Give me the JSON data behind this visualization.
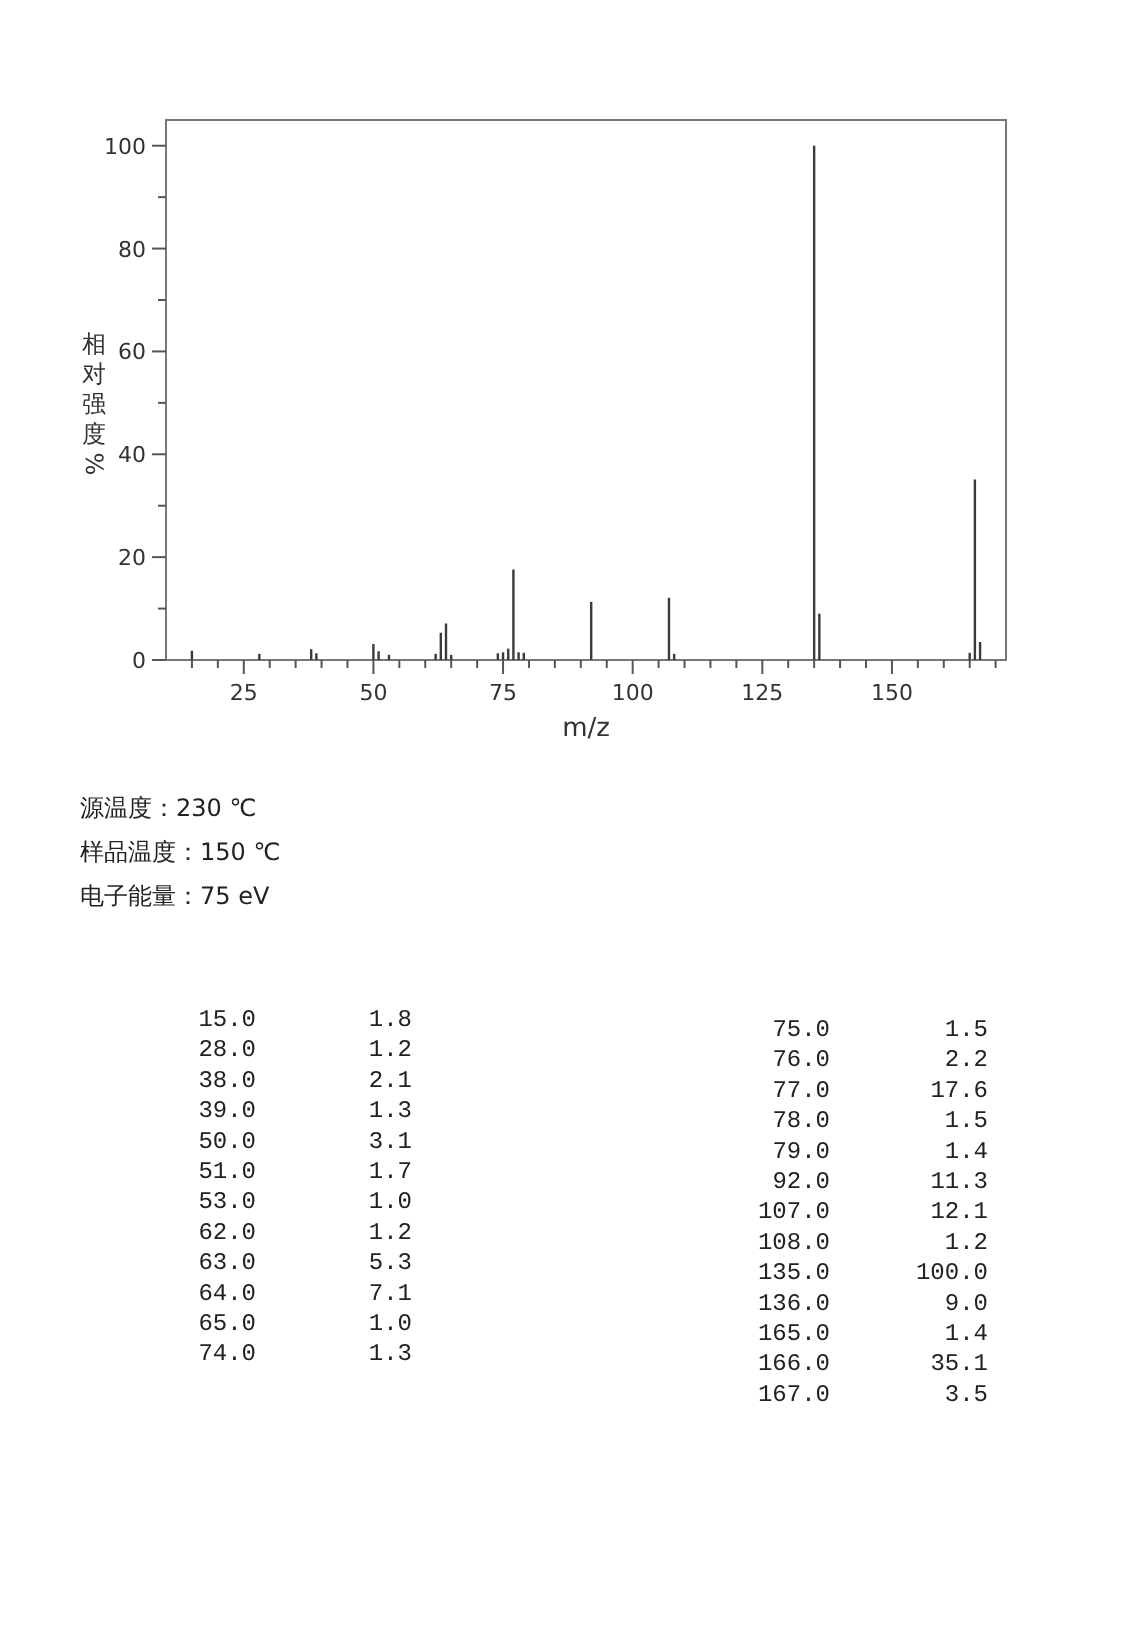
{
  "chart_data": [
    {
      "type": "bar",
      "xlabel": "m/z",
      "ylabel": "相对强度%",
      "x": [
        15,
        28,
        38,
        39,
        50,
        51,
        53,
        62,
        63,
        64,
        65,
        74,
        75,
        76,
        77,
        78,
        79,
        92,
        107,
        108,
        135,
        136,
        165,
        166,
        167
      ],
      "values": [
        1.8,
        1.2,
        2.1,
        1.3,
        3.1,
        1.7,
        1.0,
        1.2,
        5.3,
        7.1,
        1.0,
        1.3,
        1.5,
        2.2,
        17.6,
        1.5,
        1.4,
        11.3,
        12.1,
        1.2,
        100.0,
        9.0,
        1.4,
        35.1,
        3.5
      ],
      "color": "#3a3a3a",
      "xlim": [
        10,
        172
      ],
      "xticks": [
        {
          "value": 15,
          "label": null
        },
        {
          "value": 20,
          "label": null
        },
        25,
        {
          "value": 30,
          "label": null
        },
        {
          "value": 35,
          "label": null
        },
        {
          "value": 40,
          "label": null
        },
        {
          "value": 45,
          "label": null
        },
        50,
        {
          "value": 55,
          "label": null
        },
        {
          "value": 60,
          "label": null
        },
        {
          "value": 65,
          "label": null
        },
        {
          "value": 70,
          "label": null
        },
        75,
        {
          "value": 80,
          "label": null
        },
        {
          "value": 85,
          "label": null
        },
        {
          "value": 90,
          "label": null
        },
        {
          "value": 95,
          "label": null
        },
        100,
        {
          "value": 105,
          "label": null
        },
        {
          "value": 110,
          "label": null
        },
        {
          "value": 115,
          "label": null
        },
        {
          "value": 120,
          "label": null
        },
        125,
        {
          "value": 130,
          "label": null
        },
        {
          "value": 135,
          "label": null
        },
        {
          "value": 140,
          "label": null
        },
        {
          "value": 145,
          "label": null
        },
        150,
        {
          "value": 155,
          "label": null
        },
        {
          "value": 160,
          "label": null
        },
        {
          "value": 165,
          "label": null
        },
        {
          "value": 170,
          "label": null
        }
      ],
      "ylim": [
        0,
        105
      ],
      "yticks": [
        0,
        {
          "value": 10,
          "label": null
        },
        20,
        {
          "value": 30,
          "label": null
        },
        40,
        {
          "value": 50,
          "label": null
        },
        60,
        {
          "value": 70,
          "label": null
        },
        80,
        {
          "value": 90,
          "label": null
        },
        100
      ],
      "annotations": [
        "源温度：230 ℃",
        "样品温度：150 ℃",
        "电子能量：75 eV"
      ]
    },
    {
      "type": "other",
      "annotations": [
        "15.0",
        "1.8",
        "28.0",
        "1.2",
        "38.0",
        "2.1",
        "39.0",
        "1.3",
        "50.0",
        "3.1",
        "51.0",
        "1.7",
        "53.0",
        "1.0",
        "62.0",
        "1.2",
        "63.0",
        "5.3",
        "64.0",
        "7.1",
        "65.0",
        "1.0",
        "74.0",
        "1.3",
        "75.0",
        "1.5",
        "76.0",
        "2.2",
        "77.0",
        "17.6",
        "78.0",
        "1.5",
        "79.0",
        "1.4",
        "92.0",
        "11.3",
        "107.0",
        "12.1",
        "108.0",
        "1.2",
        "135.0",
        "100.0",
        "136.0",
        "9.0",
        "165.0",
        "1.4",
        "166.0",
        "35.1",
        "167.0",
        "3.5"
      ]
    }
  ]
}
